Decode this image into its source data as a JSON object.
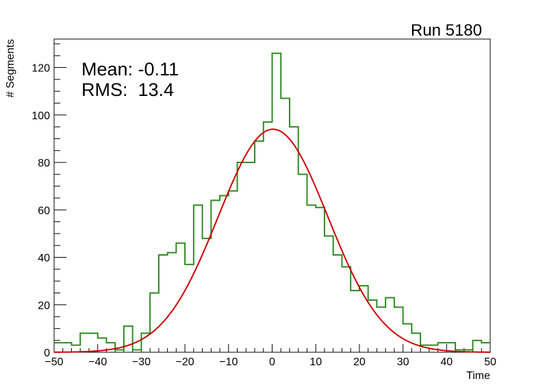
{
  "chart_data": {
    "type": "histogram",
    "title": "Run 5180",
    "xlabel": "Time",
    "ylabel": "# Segments",
    "xlim": [
      -50,
      50
    ],
    "ylim": [
      0,
      132
    ],
    "bin_width": 2,
    "x_ticks": [
      "−50",
      "−40",
      "−30",
      "−20",
      "−10",
      "0",
      "10",
      "20",
      "30",
      "40",
      "50"
    ],
    "y_ticks": [
      "0",
      "20",
      "40",
      "60",
      "80",
      "100",
      "120"
    ],
    "annotations": [
      "Mean: -0.11",
      "RMS:  13.4"
    ],
    "grid": false,
    "series": [
      {
        "style": "step",
        "color": "#2e8b22",
        "bin_edges_start": -50,
        "values": [
          4,
          4,
          3,
          8,
          8,
          6,
          4,
          1,
          11,
          1,
          8,
          25,
          41,
          42,
          46,
          37,
          62,
          48,
          64,
          66,
          68,
          80,
          80,
          89,
          97,
          126,
          107,
          95,
          75,
          62,
          61,
          49,
          41,
          36,
          26,
          28,
          22,
          19,
          23,
          19,
          12,
          8,
          3,
          3,
          4,
          4,
          1,
          1,
          5,
          4
        ]
      },
      {
        "style": "curve",
        "color": "#cc0000",
        "function": "gaussian",
        "amplitude": 94,
        "mean": 0.2,
        "sigma": 12.6
      }
    ]
  }
}
